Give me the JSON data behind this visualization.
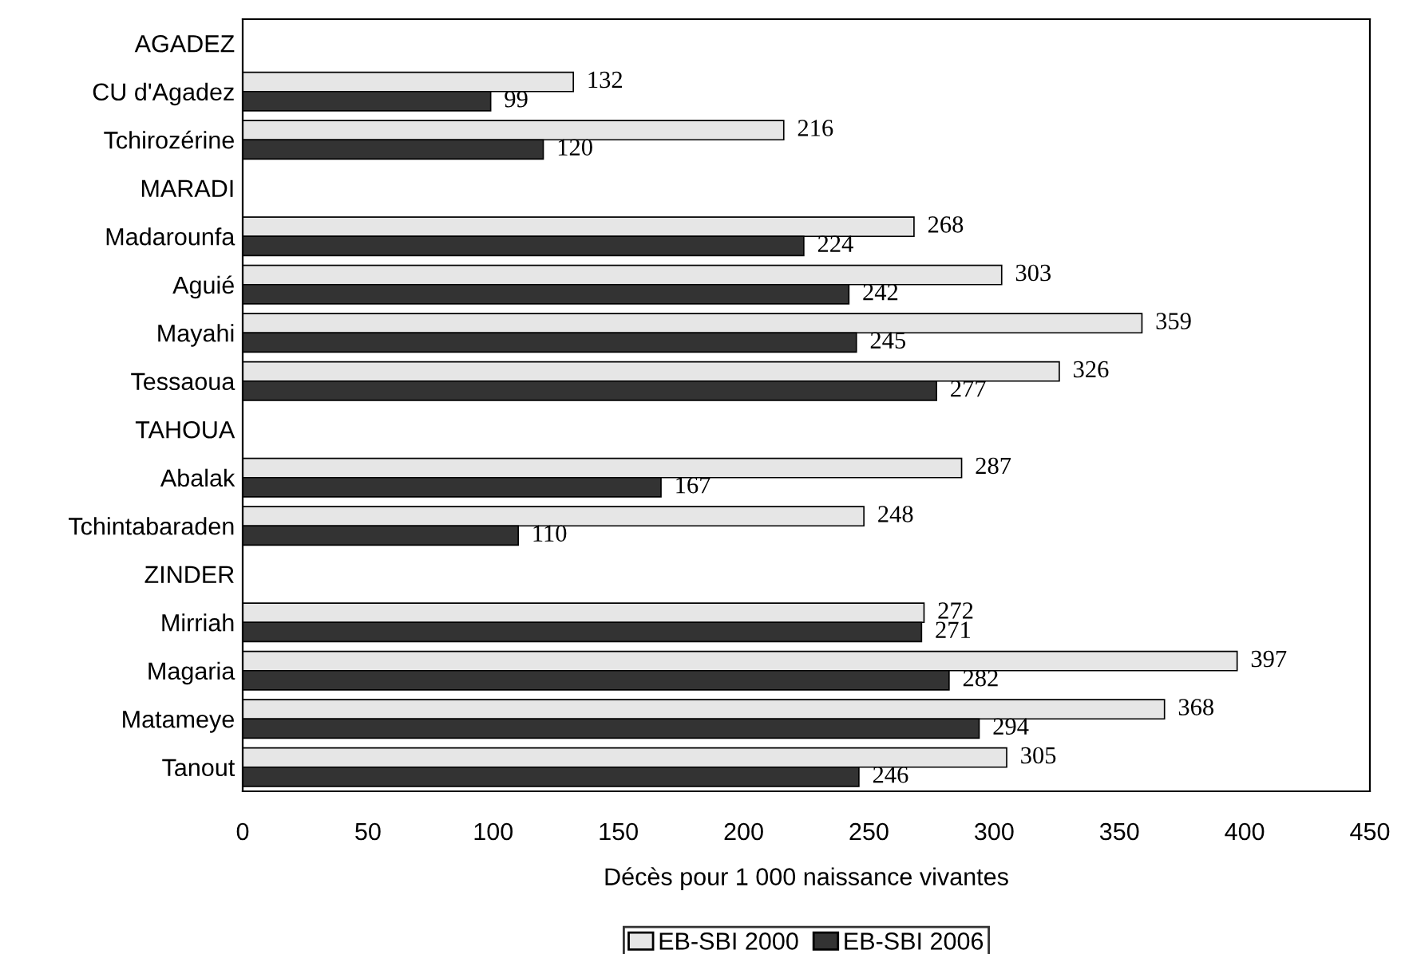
{
  "chart_data": {
    "type": "bar",
    "orientation": "horizontal",
    "xlabel": "Décès pour 1 000 naissance vivantes",
    "categories": [
      "AGADEZ",
      "CU d'Agadez",
      "Tchirozérine",
      "MARADI",
      "Madarounfa",
      "Aguié",
      "Mayahi",
      "Tessaoua",
      "TAHOUA",
      "Abalak",
      "Tchintabaraden",
      "ZINDER",
      "Mirriah",
      "Magaria",
      "Matameye",
      "Tanout"
    ],
    "series": [
      {
        "name": "EB-SBI 2000",
        "color": "#e6e6e6",
        "values": [
          null,
          132,
          216,
          null,
          268,
          303,
          359,
          326,
          null,
          287,
          248,
          null,
          272,
          397,
          368,
          305
        ]
      },
      {
        "name": "EB-SBI 2006",
        "color": "#333333",
        "values": [
          null,
          99,
          120,
          null,
          224,
          242,
          245,
          277,
          null,
          167,
          110,
          null,
          271,
          282,
          294,
          246
        ]
      }
    ],
    "xlim": [
      0,
      450
    ],
    "xticks": [
      0,
      50,
      100,
      150,
      200,
      250,
      300,
      350,
      400,
      450
    ],
    "grid": false,
    "legend": "bottom",
    "data_labels": true
  }
}
